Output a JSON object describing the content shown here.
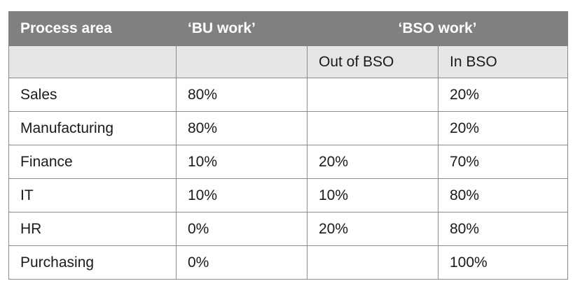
{
  "table": {
    "headers": {
      "process_area": "Process area",
      "bu_work": "‘BU work’",
      "bso_work": "‘BSO work’"
    },
    "subheaders": {
      "blank1": "",
      "blank2": "",
      "out_of_bso": "Out of BSO",
      "in_bso": "In BSO"
    },
    "rows": [
      {
        "area": "Sales",
        "bu": "80%",
        "out": "",
        "in": "20%"
      },
      {
        "area": "Manufacturing",
        "bu": "80%",
        "out": "",
        "in": "20%"
      },
      {
        "area": "Finance",
        "bu": "10%",
        "out": "20%",
        "in": "70%"
      },
      {
        "area": "IT",
        "bu": "10%",
        "out": "10%",
        "in": "80%"
      },
      {
        "area": "HR",
        "bu": "0%",
        "out": "20%",
        "in": "80%"
      },
      {
        "area": "Purchasing",
        "bu": "0%",
        "out": "",
        "in": "100%"
      }
    ],
    "colors": {
      "header_bg": "#808080",
      "subheader_bg": "#e6e6e6",
      "border": "#8a8a8a"
    }
  }
}
